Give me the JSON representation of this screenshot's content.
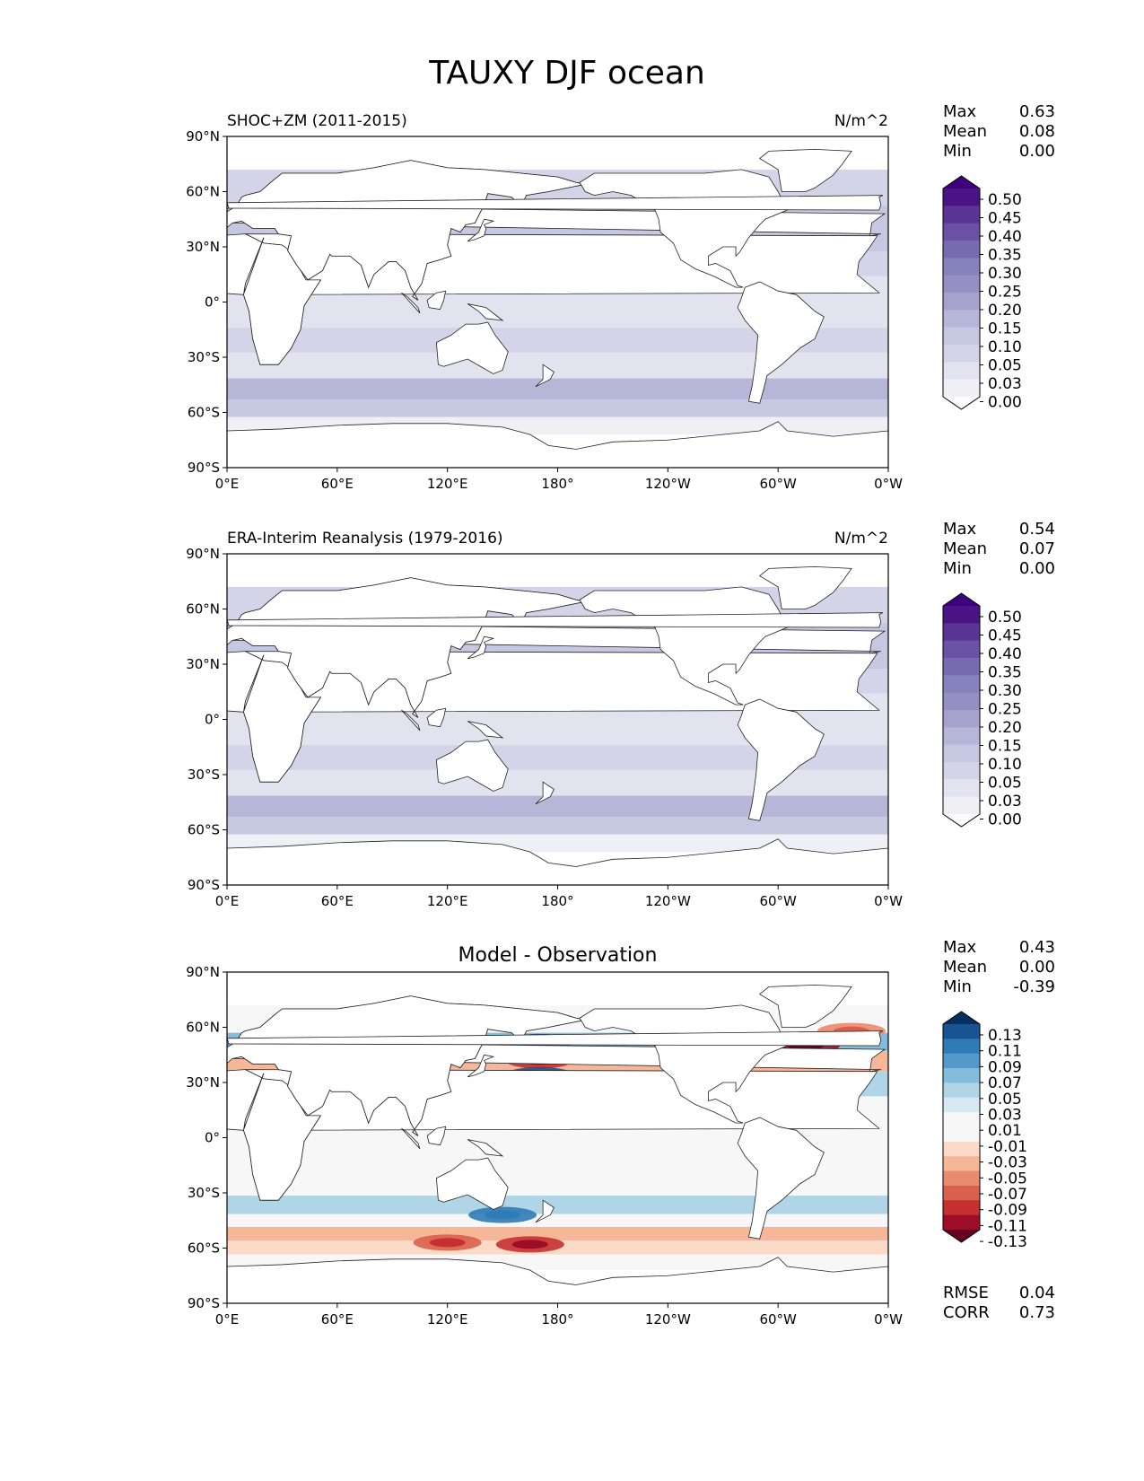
{
  "title": "TAUXY DJF ocean",
  "colors": {
    "land": "#ffffff",
    "coast": "#222222",
    "seq": [
      "#fcfbfd",
      "#f0eff6",
      "#e3e2ef",
      "#d4d4e8",
      "#c6c7e1",
      "#b6b6d8",
      "#a5a3ce",
      "#9490c3",
      "#8582bc",
      "#786cb0",
      "#6a51a3",
      "#5b3596",
      "#4a1486",
      "#3f007d"
    ],
    "div": [
      "#67001f",
      "#9e0d27",
      "#c53030",
      "#d9604c",
      "#e98b6e",
      "#f6b799",
      "#fbdac7",
      "#f7f7f7",
      "#f7f7f7",
      "#d6e8f1",
      "#b0d5e7",
      "#85bcdc",
      "#539ac9",
      "#2f7bb6",
      "#195391",
      "#053061"
    ]
  },
  "chart_data": [
    {
      "type": "heatmap",
      "panel": "model",
      "title": "SHOC+ZM (2011-2015)",
      "units": "N/m^2",
      "stats": [
        {
          "label": "Max",
          "value": "0.63"
        },
        {
          "label": "Mean",
          "value": "0.08"
        },
        {
          "label": "Min",
          "value": "0.00"
        }
      ],
      "levels": [
        "0.50",
        "0.45",
        "0.40",
        "0.35",
        "0.30",
        "0.25",
        "0.20",
        "0.15",
        "0.10",
        "0.05",
        "0.03",
        "0.00"
      ],
      "xticks": [
        "0°E",
        "60°E",
        "120°E",
        "180°",
        "120°W",
        "60°W",
        "0°W"
      ],
      "yticks": [
        "90°N",
        "60°N",
        "30°N",
        "0°",
        "30°S",
        "60°S",
        "90°S"
      ],
      "xlim": [
        0,
        360
      ],
      "ylim": [
        -90,
        90
      ],
      "bands": [
        {
          "lat": 60,
          "value": 0.1
        },
        {
          "lat": 45,
          "value": 0.14
        },
        {
          "lat": 35,
          "value": 0.17
        },
        {
          "lat": 20,
          "value": 0.12
        },
        {
          "lat": 8,
          "value": 0.07
        },
        {
          "lat": -8,
          "value": 0.06
        },
        {
          "lat": -20,
          "value": 0.11
        },
        {
          "lat": -35,
          "value": 0.08
        },
        {
          "lat": -48,
          "value": 0.2
        },
        {
          "lat": -58,
          "value": 0.16
        },
        {
          "lat": -67,
          "value": 0.04
        }
      ]
    },
    {
      "type": "heatmap",
      "panel": "reference",
      "title": "ERA-Interim Reanalysis (1979-2016)",
      "units": "N/m^2",
      "stats": [
        {
          "label": "Max",
          "value": "0.54"
        },
        {
          "label": "Mean",
          "value": "0.07"
        },
        {
          "label": "Min",
          "value": "0.00"
        }
      ],
      "levels": [
        "0.50",
        "0.45",
        "0.40",
        "0.35",
        "0.30",
        "0.25",
        "0.20",
        "0.15",
        "0.10",
        "0.05",
        "0.03",
        "0.00"
      ],
      "xticks": [
        "0°E",
        "60°E",
        "120°E",
        "180°",
        "120°W",
        "60°W",
        "0°W"
      ],
      "yticks": [
        "90°N",
        "60°N",
        "30°N",
        "0°",
        "30°S",
        "60°S",
        "90°S"
      ],
      "xlim": [
        0,
        360
      ],
      "ylim": [
        -90,
        90
      ],
      "bands": [
        {
          "lat": 60,
          "value": 0.12
        },
        {
          "lat": 45,
          "value": 0.16
        },
        {
          "lat": 35,
          "value": 0.15
        },
        {
          "lat": 20,
          "value": 0.11
        },
        {
          "lat": 8,
          "value": 0.07
        },
        {
          "lat": -8,
          "value": 0.06
        },
        {
          "lat": -20,
          "value": 0.1
        },
        {
          "lat": -35,
          "value": 0.09
        },
        {
          "lat": -48,
          "value": 0.18
        },
        {
          "lat": -58,
          "value": 0.15
        },
        {
          "lat": -67,
          "value": 0.05
        }
      ]
    },
    {
      "type": "heatmap",
      "panel": "difference",
      "title": "Model - Observation",
      "units": "",
      "stats": [
        {
          "label": "Max",
          "value": "0.43"
        },
        {
          "label": "Mean",
          "value": "0.00"
        },
        {
          "label": "Min",
          "value": "-0.39"
        }
      ],
      "levels": [
        "0.13",
        "0.11",
        "0.09",
        "0.07",
        "0.05",
        "0.03",
        "0.01",
        "-0.01",
        "-0.03",
        "-0.05",
        "-0.07",
        "-0.09",
        "-0.11",
        "-0.13"
      ],
      "xticks": [
        "0°E",
        "60°E",
        "120°E",
        "180°",
        "120°W",
        "60°W",
        "0°W"
      ],
      "yticks": [
        "90°N",
        "60°N",
        "30°N",
        "0°",
        "30°S",
        "60°S",
        "90°S"
      ],
      "xlim": [
        0,
        360
      ],
      "ylim": [
        -90,
        90
      ],
      "bands": [
        {
          "lat": 62,
          "value": -0.02
        },
        {
          "lat": 52,
          "value": 0.06
        },
        {
          "lat": 42,
          "value": -0.06
        },
        {
          "lat": 30,
          "value": 0.05
        },
        {
          "lat": 15,
          "value": 0.0
        },
        {
          "lat": 0,
          "value": 0.01
        },
        {
          "lat": -15,
          "value": 0.0
        },
        {
          "lat": -25,
          "value": 0.02
        },
        {
          "lat": -38,
          "value": 0.05
        },
        {
          "lat": -45,
          "value": 0.02
        },
        {
          "lat": -52,
          "value": -0.06
        },
        {
          "lat": -60,
          "value": -0.03
        },
        {
          "lat": -67,
          "value": 0.0
        }
      ],
      "blobs": [
        {
          "lon": 170,
          "lat": 52,
          "value": 0.13
        },
        {
          "lon": 170,
          "lat": 42,
          "value": -0.11
        },
        {
          "lon": 170,
          "lat": 34,
          "value": 0.12
        },
        {
          "lon": 315,
          "lat": 50,
          "value": -0.13
        },
        {
          "lon": 120,
          "lat": -57,
          "value": -0.09
        },
        {
          "lon": 165,
          "lat": -58,
          "value": -0.12
        },
        {
          "lon": 150,
          "lat": -42,
          "value": 0.1
        },
        {
          "lon": 340,
          "lat": 58,
          "value": -0.07
        }
      ],
      "metrics": [
        {
          "label": "RMSE",
          "value": "0.04"
        },
        {
          "label": "CORR",
          "value": "0.73"
        }
      ]
    }
  ]
}
